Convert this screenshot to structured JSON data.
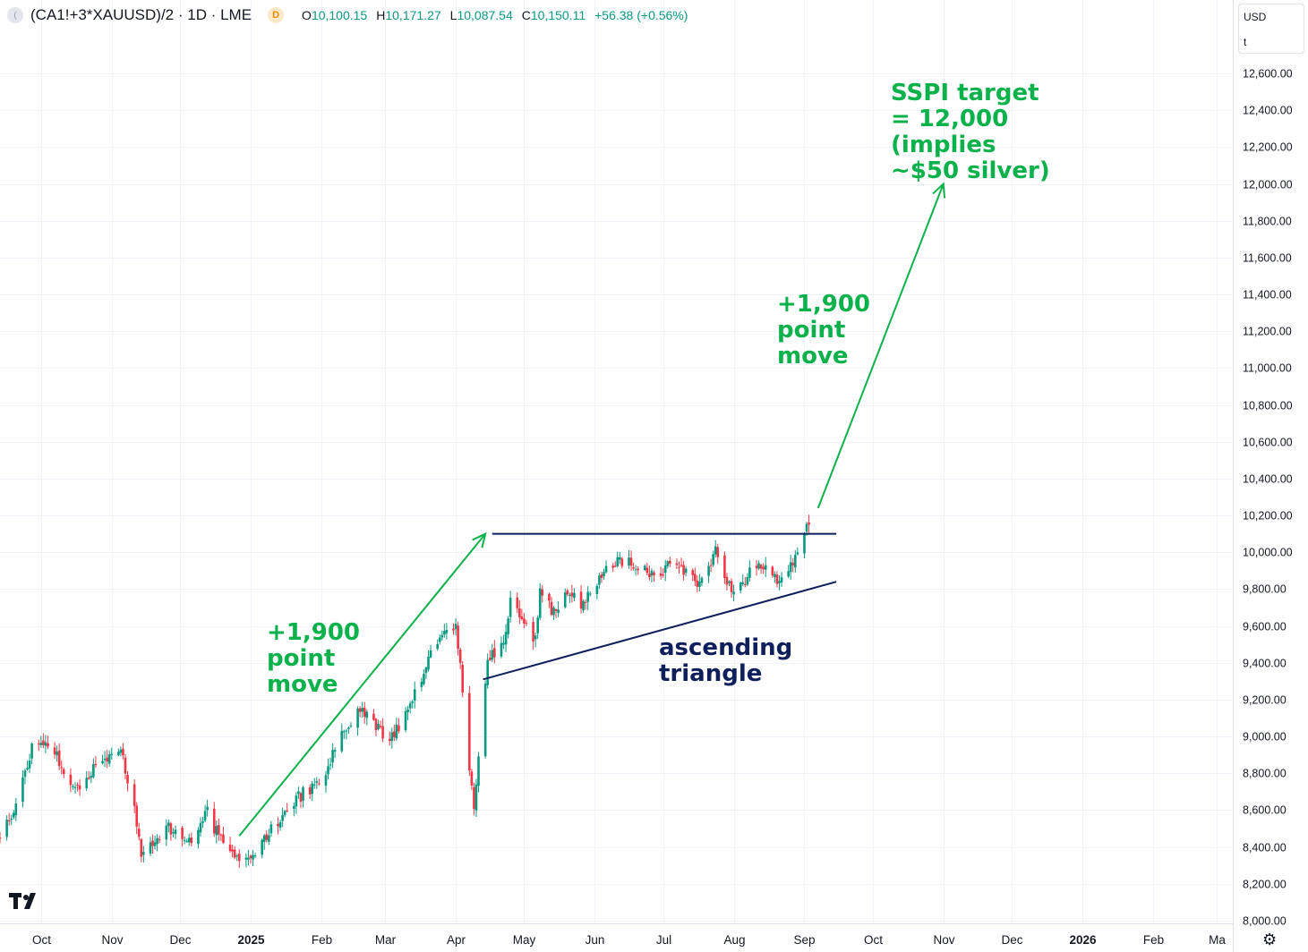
{
  "header": {
    "logo_glyph": "(",
    "symbol": "(CA1!+3*XAUUSD)/2 · 1D · LME",
    "interval_badge": "D",
    "open_label": "O",
    "open_value": "10,100.15",
    "high_label": "H",
    "high_value": "10,171.27",
    "low_label": "L",
    "low_value": "10,087.54",
    "close_label": "C",
    "close_value": "10,150.11",
    "change": "+56.38 (+0.56%)"
  },
  "unit_box": {
    "currency": "USD",
    "unit": "t"
  },
  "colors": {
    "up": "#089981",
    "down": "#f23645",
    "annotation": "#0bb14a",
    "trendline": "#0f1f5c",
    "grid": "#f0f3fa"
  },
  "chart_data": {
    "type": "candlestick",
    "title": "(CA1!+3*XAUUSD)/2 · 1D · LME",
    "ylim": [
      8000,
      12800
    ],
    "y_ticks": [
      8000,
      8200,
      8400,
      8600,
      8800,
      9000,
      9200,
      9400,
      9600,
      9800,
      10000,
      10200,
      10400,
      10600,
      10800,
      11000,
      11200,
      11400,
      11600,
      11800,
      12000,
      12200,
      12400,
      12600
    ],
    "y_tick_labels": [
      "8,000.00",
      "8,200.00",
      "8,400.00",
      "8,600.00",
      "8,800.00",
      "9,000.00",
      "9,200.00",
      "9,400.00",
      "9,600.00",
      "9,800.00",
      "10,000.00",
      "10,200.00",
      "10,400.00",
      "10,600.00",
      "10,800.00",
      "11,000.00",
      "11,200.00",
      "11,400.00",
      "11,600.00",
      "11,800.00",
      "12,000.00",
      "12,200.00",
      "12,400.00",
      "12,600.00"
    ],
    "x_start": "2024-09-13",
    "x_end": "2026-03-08",
    "x_ticks": [
      {
        "label": "Oct",
        "date": "2024-10-01"
      },
      {
        "label": "Nov",
        "date": "2024-11-01"
      },
      {
        "label": "Dec",
        "date": "2024-12-01"
      },
      {
        "label": "2025",
        "date": "2025-01-01",
        "bold": true
      },
      {
        "label": "Feb",
        "date": "2025-02-01"
      },
      {
        "label": "Mar",
        "date": "2025-03-01"
      },
      {
        "label": "Apr",
        "date": "2025-04-01"
      },
      {
        "label": "May",
        "date": "2025-05-01"
      },
      {
        "label": "Jun",
        "date": "2025-06-01"
      },
      {
        "label": "Jul",
        "date": "2025-07-01"
      },
      {
        "label": "Aug",
        "date": "2025-08-01"
      },
      {
        "label": "Sep",
        "date": "2025-09-01"
      },
      {
        "label": "Oct",
        "date": "2025-10-01"
      },
      {
        "label": "Nov",
        "date": "2025-11-01"
      },
      {
        "label": "Dec",
        "date": "2025-12-01"
      },
      {
        "label": "2026",
        "date": "2026-01-01",
        "bold": true
      },
      {
        "label": "Feb",
        "date": "2026-02-01"
      },
      {
        "label": "Ma",
        "date": "2026-03-01"
      }
    ],
    "price_path": [
      [
        "2024-09-13",
        8450
      ],
      [
        "2024-09-20",
        8620
      ],
      [
        "2024-09-27",
        8950
      ],
      [
        "2024-10-03",
        8980
      ],
      [
        "2024-10-09",
        8870
      ],
      [
        "2024-10-15",
        8700
      ],
      [
        "2024-10-22",
        8800
      ],
      [
        "2024-10-29",
        8880
      ],
      [
        "2024-11-04",
        8930
      ],
      [
        "2024-11-07",
        8830
      ],
      [
        "2024-11-12",
        8530
      ],
      [
        "2024-11-14",
        8320
      ],
      [
        "2024-11-18",
        8400
      ],
      [
        "2024-11-25",
        8520
      ],
      [
        "2024-12-02",
        8420
      ],
      [
        "2024-12-09",
        8460
      ],
      [
        "2024-12-12",
        8620
      ],
      [
        "2024-12-17",
        8480
      ],
      [
        "2024-12-23",
        8360
      ],
      [
        "2024-12-30",
        8320
      ],
      [
        "2025-01-06",
        8420
      ],
      [
        "2025-01-13",
        8540
      ],
      [
        "2025-01-20",
        8650
      ],
      [
        "2025-01-27",
        8720
      ],
      [
        "2025-02-03",
        8780
      ],
      [
        "2025-02-07",
        8960
      ],
      [
        "2025-02-14",
        9080
      ],
      [
        "2025-02-19",
        9150
      ],
      [
        "2025-02-25",
        9050
      ],
      [
        "2025-03-03",
        8970
      ],
      [
        "2025-03-10",
        9120
      ],
      [
        "2025-03-17",
        9300
      ],
      [
        "2025-03-21",
        9450
      ],
      [
        "2025-03-27",
        9580
      ],
      [
        "2025-04-01",
        9600
      ],
      [
        "2025-04-03",
        9380
      ],
      [
        "2025-04-07",
        8800
      ],
      [
        "2025-04-09",
        8620
      ],
      [
        "2025-04-11",
        8900
      ],
      [
        "2025-04-15",
        9420
      ],
      [
        "2025-04-22",
        9500
      ],
      [
        "2025-04-25",
        9750
      ],
      [
        "2025-04-30",
        9650
      ],
      [
        "2025-05-06",
        9520
      ],
      [
        "2025-05-08",
        9800
      ],
      [
        "2025-05-13",
        9680
      ],
      [
        "2025-05-20",
        9780
      ],
      [
        "2025-05-27",
        9720
      ],
      [
        "2025-06-02",
        9850
      ],
      [
        "2025-06-09",
        9930
      ],
      [
        "2025-06-16",
        9960
      ],
      [
        "2025-06-23",
        9900
      ],
      [
        "2025-06-30",
        9850
      ],
      [
        "2025-07-04",
        9960
      ],
      [
        "2025-07-11",
        9880
      ],
      [
        "2025-07-17",
        9820
      ],
      [
        "2025-07-24",
        10020
      ],
      [
        "2025-07-28",
        9890
      ],
      [
        "2025-08-01",
        9760
      ],
      [
        "2025-08-06",
        9850
      ],
      [
        "2025-08-12",
        9950
      ],
      [
        "2025-08-18",
        9880
      ],
      [
        "2025-08-22",
        9830
      ],
      [
        "2025-08-27",
        9950
      ],
      [
        "2025-09-01",
        10100
      ],
      [
        "2025-09-03",
        10150
      ]
    ],
    "trendlines": [
      {
        "name": "resistance",
        "from": [
          "2025-04-17",
          10100
        ],
        "to": [
          "2025-09-15",
          10100
        ]
      },
      {
        "name": "support",
        "from": [
          "2025-04-13",
          9310
        ],
        "to": [
          "2025-09-15",
          9840
        ]
      }
    ],
    "arrows": [
      {
        "name": "first-move-arrow",
        "from": [
          "2024-12-27",
          8460
        ],
        "to": [
          "2025-04-14",
          10100
        ]
      },
      {
        "name": "projected-move-arrow",
        "from": [
          "2025-09-07",
          10240
        ],
        "to": [
          "2025-11-01",
          12000
        ]
      }
    ],
    "annotations": [
      {
        "name": "first-move-label",
        "lines": [
          "+1,900",
          "point",
          "move"
        ],
        "color": "#0bb14a"
      },
      {
        "name": "second-move-label",
        "lines": [
          "+1,900",
          "point",
          "move"
        ],
        "color": "#0bb14a"
      },
      {
        "name": "target-label",
        "lines": [
          "SSPI target",
          "= 12,000",
          "(implies",
          "~$50 silver)"
        ],
        "color": "#0bb14a"
      },
      {
        "name": "triangle-label",
        "lines": [
          "ascending",
          "triangle"
        ],
        "color": "#0f1f5c"
      }
    ]
  }
}
